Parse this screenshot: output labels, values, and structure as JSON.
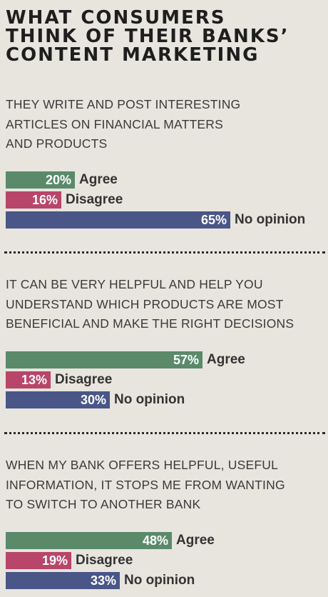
{
  "title_lines": [
    "WHAT CONSUMERS",
    "THINK OF THEIR BANKS’",
    "CONTENT MARKETING"
  ],
  "colors": {
    "agree": "#5a8a6a",
    "disagree": "#b8456a",
    "no_opinion": "#4a5688",
    "background": "#e8e5df"
  },
  "chart_data": [
    {
      "type": "bar",
      "orientation": "horizontal",
      "question_lines": [
        "THEY WRITE AND POST INTERESTING",
        "ARTICLES ON FINANCIAL MATTERS",
        "AND PRODUCTS"
      ],
      "categories": [
        "Agree",
        "Disagree",
        "No opinion"
      ],
      "values": [
        20,
        16,
        65
      ],
      "value_labels": [
        "20%",
        "16%",
        "65%"
      ],
      "unit": "%"
    },
    {
      "type": "bar",
      "orientation": "horizontal",
      "question_lines": [
        "IT CAN BE VERY HELPFUL AND HELP YOU",
        "UNDERSTAND WHICH PRODUCTS ARE MOST",
        "BENEFICIAL AND MAKE THE RIGHT DECISIONS"
      ],
      "categories": [
        "Agree",
        "Disagree",
        "No opinion"
      ],
      "values": [
        57,
        13,
        30
      ],
      "value_labels": [
        "57%",
        "13%",
        "30%"
      ],
      "unit": "%"
    },
    {
      "type": "bar",
      "orientation": "horizontal",
      "question_lines": [
        "WHEN MY BANK OFFERS HELPFUL, USEFUL",
        "INFORMATION, IT STOPS ME FROM WANTING",
        "TO SWITCH TO ANOTHER BANK"
      ],
      "categories": [
        "Agree",
        "Disagree",
        "No opinion"
      ],
      "values": [
        48,
        19,
        33
      ],
      "value_labels": [
        "48%",
        "19%",
        "33%"
      ],
      "unit": "%"
    }
  ]
}
